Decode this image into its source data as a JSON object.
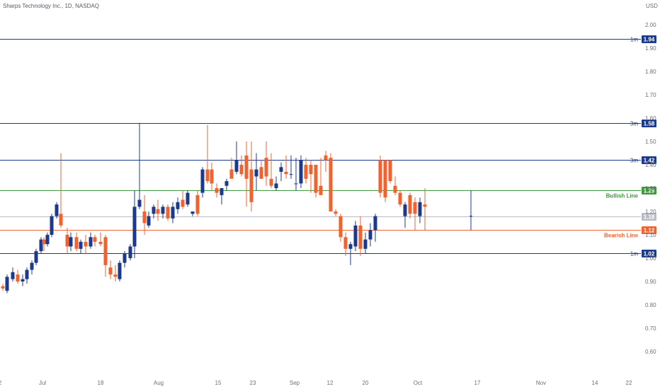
{
  "chart_data": {
    "type": "candlestick",
    "title": "Sharps Technology Inc., 1D, NASDAQ",
    "currency": "USD",
    "ylim": [
      0.57,
      2.05
    ],
    "y_ticks": [
      "2.00",
      "1.90",
      "1.80",
      "1.70",
      "1.60",
      "1.50",
      "1.40",
      "1.30",
      "1.20",
      "1.10",
      "1.00",
      "0.90",
      "0.80",
      "0.70",
      "0.60"
    ],
    "x_ticks": [
      {
        "label": "2",
        "i": 0
      },
      {
        "label": "Jul",
        "i": 7
      },
      {
        "label": "18",
        "i": 16
      },
      {
        "label": "Aug",
        "i": 26
      },
      {
        "label": "15",
        "i": 35
      },
      {
        "label": "23",
        "i": 41
      },
      {
        "label": "Sep",
        "i": 48
      },
      {
        "label": "12",
        "i": 54
      },
      {
        "label": "20",
        "i": 60
      },
      {
        "label": "Oct",
        "i": 69
      },
      {
        "label": "17",
        "i": 79
      },
      {
        "label": "Nov",
        "i": 89
      },
      {
        "label": "14",
        "i": 98
      },
      {
        "label": "22",
        "i": 104
      }
    ],
    "levels": [
      {
        "name": "1m",
        "value": 1.94,
        "tag": "1.94",
        "color": "#1c3a8c"
      },
      {
        "name": "3m",
        "value": 1.58,
        "tag": "1.58",
        "color": "#1c3a8c"
      },
      {
        "name": "3m",
        "value": 1.42,
        "tag": "1.42",
        "color": "#1c3a8c"
      },
      {
        "name": "Bullish Line",
        "value": 1.29,
        "tag": "1.29",
        "color": "#3c9a3c"
      },
      {
        "name": "",
        "value": 1.18,
        "tag": "1.18",
        "color": "#b9bcc2"
      },
      {
        "name": "Bearish Line",
        "value": 1.12,
        "tag": "1.12",
        "color": "#f2622e"
      },
      {
        "name": "1m",
        "value": 1.02,
        "tag": "1.02",
        "color": "#1c3a8c"
      }
    ],
    "colors": {
      "up": "#1c3a8c",
      "down": "#f2622e"
    },
    "candles": [
      [
        0.88,
        0.89,
        0.86,
        0.87
      ],
      [
        0.86,
        0.93,
        0.85,
        0.92
      ],
      [
        0.91,
        0.96,
        0.9,
        0.94
      ],
      [
        0.93,
        0.95,
        0.89,
        0.9
      ],
      [
        0.9,
        0.93,
        0.88,
        0.91
      ],
      [
        0.91,
        0.96,
        0.89,
        0.95
      ],
      [
        0.95,
        0.99,
        0.93,
        0.98
      ],
      [
        0.98,
        1.04,
        0.97,
        1.03
      ],
      [
        1.03,
        1.09,
        1.02,
        1.08
      ],
      [
        1.08,
        1.09,
        1.03,
        1.06
      ],
      [
        1.06,
        1.11,
        1.05,
        1.1
      ],
      [
        1.1,
        1.19,
        1.09,
        1.18
      ],
      [
        1.18,
        1.24,
        1.17,
        1.23
      ],
      [
        1.19,
        1.45,
        1.13,
        1.14
      ],
      [
        1.1,
        1.13,
        1.02,
        1.05
      ],
      [
        1.05,
        1.11,
        1.03,
        1.09
      ],
      [
        1.09,
        1.11,
        1.03,
        1.04
      ],
      [
        1.04,
        1.08,
        1.02,
        1.07
      ],
      [
        1.07,
        1.1,
        1.02,
        1.05
      ],
      [
        1.05,
        1.11,
        1.04,
        1.09
      ],
      [
        1.09,
        1.1,
        1.05,
        1.07
      ],
      [
        1.07,
        1.11,
        1.05,
        1.06
      ],
      [
        1.09,
        1.1,
        0.92,
        0.97
      ],
      [
        0.96,
        0.99,
        0.91,
        0.93
      ],
      [
        0.93,
        0.97,
        0.9,
        0.92
      ],
      [
        0.91,
        0.99,
        0.9,
        0.98
      ],
      [
        0.98,
        1.03,
        0.96,
        1.02
      ],
      [
        1.0,
        1.06,
        0.99,
        1.05
      ],
      [
        1.05,
        1.29,
        1.0,
        1.22
      ],
      [
        1.22,
        1.58,
        1.21,
        1.25
      ],
      [
        1.2,
        1.27,
        1.1,
        1.15
      ],
      [
        1.14,
        1.2,
        1.13,
        1.18
      ],
      [
        1.19,
        1.23,
        1.17,
        1.22
      ],
      [
        1.21,
        1.25,
        1.16,
        1.19
      ],
      [
        1.19,
        1.23,
        1.17,
        1.22
      ],
      [
        1.22,
        1.23,
        1.16,
        1.17
      ],
      [
        1.17,
        1.24,
        1.15,
        1.22
      ],
      [
        1.21,
        1.26,
        1.19,
        1.24
      ],
      [
        1.25,
        1.29,
        1.21,
        1.22
      ],
      [
        1.23,
        1.29,
        1.22,
        1.28
      ],
      [
        1.19,
        1.2,
        1.18,
        1.2
      ],
      [
        1.27,
        1.29,
        1.18,
        1.19
      ],
      [
        1.28,
        1.39,
        1.26,
        1.38
      ],
      [
        1.38,
        1.57,
        1.32,
        1.33
      ],
      [
        1.38,
        1.41,
        1.29,
        1.32
      ],
      [
        1.3,
        1.32,
        1.26,
        1.28
      ],
      [
        1.27,
        1.3,
        1.23,
        1.3
      ],
      [
        1.31,
        1.34,
        1.29,
        1.33
      ],
      [
        1.38,
        1.43,
        1.35,
        1.34
      ],
      [
        1.37,
        1.5,
        1.36,
        1.42
      ],
      [
        1.4,
        1.44,
        1.35,
        1.36
      ],
      [
        1.44,
        1.5,
        1.22,
        1.34
      ],
      [
        1.38,
        1.5,
        1.2,
        1.24
      ],
      [
        1.35,
        1.45,
        1.29,
        1.38
      ],
      [
        1.39,
        1.42,
        1.34,
        1.34
      ],
      [
        1.43,
        1.5,
        1.31,
        1.35
      ],
      [
        1.34,
        1.45,
        1.3,
        1.31
      ],
      [
        1.3,
        1.35,
        1.29,
        1.32
      ],
      [
        1.37,
        1.41,
        1.33,
        1.39
      ],
      [
        1.37,
        1.44,
        1.34,
        1.36
      ],
      [
        1.36,
        1.44,
        1.34,
        1.36
      ],
      [
        1.32,
        1.43,
        1.29,
        1.32
      ],
      [
        1.32,
        1.44,
        1.3,
        1.42
      ],
      [
        1.4,
        1.43,
        1.32,
        1.34
      ],
      [
        1.4,
        1.42,
        1.28,
        1.36
      ],
      [
        1.4,
        1.4,
        1.26,
        1.28
      ],
      [
        1.31,
        1.43,
        1.27,
        1.27
      ],
      [
        1.44,
        1.46,
        1.37,
        1.42
      ],
      [
        1.43,
        1.45,
        1.2,
        1.2
      ],
      [
        1.2,
        1.21,
        1.18,
        1.19
      ],
      [
        1.18,
        1.19,
        1.07,
        1.09
      ],
      [
        1.09,
        1.11,
        1.01,
        1.04
      ],
      [
        1.04,
        1.07,
        0.97,
        1.06
      ],
      [
        1.05,
        1.16,
        1.03,
        1.14
      ],
      [
        1.14,
        1.18,
        1.01,
        1.04
      ],
      [
        1.04,
        1.11,
        1.02,
        1.08
      ],
      [
        1.08,
        1.15,
        1.05,
        1.12
      ],
      [
        1.12,
        1.19,
        1.07,
        1.18
      ],
      [
        1.42,
        1.44,
        1.26,
        1.28
      ],
      [
        1.42,
        1.42,
        1.24,
        1.26
      ],
      [
        1.42,
        1.42,
        1.32,
        1.33
      ],
      [
        1.31,
        1.35,
        1.27,
        1.28
      ],
      [
        1.28,
        1.29,
        1.22,
        1.23
      ],
      [
        1.18,
        1.24,
        1.13,
        1.23
      ],
      [
        1.27,
        1.28,
        1.17,
        1.19
      ],
      [
        1.24,
        1.26,
        1.12,
        1.19
      ],
      [
        1.18,
        1.26,
        1.15,
        1.24
      ],
      [
        1.23,
        1.3,
        1.12,
        1.22
      ]
    ],
    "candle_x": [
      4,
      10,
      18,
      25,
      32,
      38,
      45,
      51,
      58,
      62,
      67,
      73,
      80,
      86,
      95,
      100,
      108,
      114,
      121,
      128,
      134,
      142,
      149,
      156,
      163,
      169,
      176,
      184,
      190,
      197,
      204,
      210,
      217,
      223,
      230,
      237,
      244,
      251,
      258,
      265,
      272,
      279,
      286,
      293,
      299,
      306,
      313,
      320,
      327,
      334,
      341,
      348,
      355,
      362,
      369,
      376,
      383,
      390,
      397,
      404,
      411,
      418,
      425,
      432,
      439,
      446,
      453,
      460,
      467,
      474,
      481,
      488,
      495,
      502,
      509,
      516,
      523,
      530,
      537,
      544,
      551,
      558,
      565,
      572,
      579,
      586,
      593,
      600
    ]
  }
}
